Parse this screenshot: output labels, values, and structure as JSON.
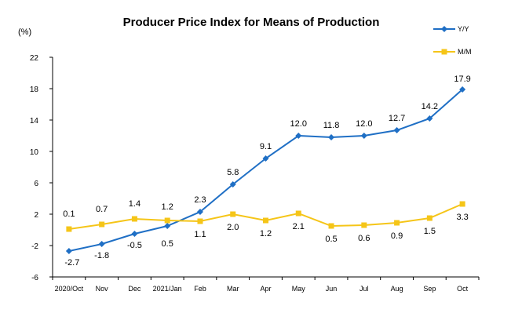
{
  "chart_data": {
    "type": "line",
    "title": "Producer Price Index for Means of Production",
    "ylabel": "(%)",
    "xlabel": "",
    "ylim": [
      -6,
      22
    ],
    "yticks": [
      -6,
      -2,
      2,
      6,
      10,
      14,
      18,
      22
    ],
    "grid": false,
    "legend_position": "top-right",
    "categories": [
      "2020/Oct",
      "Nov",
      "Dec",
      "2021/Jan",
      "Feb",
      "Mar",
      "Apr",
      "May",
      "Jun",
      "Jul",
      "Aug",
      "Sep",
      "Oct"
    ],
    "series": [
      {
        "name": "Y/Y",
        "color": "#1f6fc5",
        "marker": "diamond",
        "values": [
          -2.7,
          -1.8,
          -0.5,
          0.5,
          2.3,
          5.8,
          9.1,
          12.0,
          11.8,
          12.0,
          12.7,
          14.2,
          17.9
        ],
        "labels": [
          "-2.7",
          "-1.8",
          "-0.5",
          "0.5",
          "2.3",
          "5.8",
          "9.1",
          "12.0",
          "11.8",
          "12.0",
          "12.7",
          "14.2",
          "17.9"
        ]
      },
      {
        "name": "M/M",
        "color": "#f5c518",
        "marker": "square",
        "values": [
          0.1,
          0.7,
          1.4,
          1.2,
          1.1,
          2.0,
          1.2,
          2.1,
          0.5,
          0.6,
          0.9,
          1.5,
          3.3
        ],
        "labels": [
          "0.1",
          "0.7",
          "1.4",
          "1.2",
          "1.1",
          "2.0",
          "1.2",
          "2.1",
          "0.5",
          "0.6",
          "0.9",
          "1.5",
          "3.3"
        ]
      }
    ]
  }
}
